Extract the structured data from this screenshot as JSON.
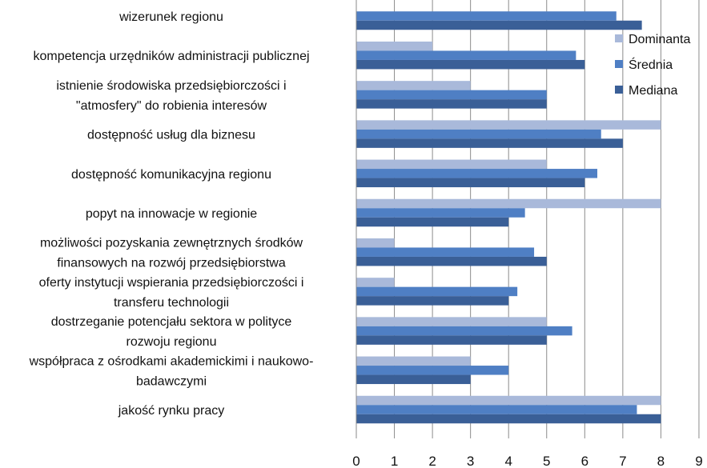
{
  "chart_data": {
    "type": "bar",
    "orientation": "horizontal",
    "categories": [
      [
        "wizerunek regionu"
      ],
      [
        "kompetencja urzędników administracji publicznej"
      ],
      [
        "istnienie środowiska przedsiębiorczości i",
        "\"atmosfery\" do robienia interesów"
      ],
      [
        "dostępność usług dla biznesu"
      ],
      [
        "dostępność komunikacyjna regionu"
      ],
      [
        "popyt na innowacje w regionie"
      ],
      [
        "możliwości pozyskania zewnętrznych środków",
        "finansowych na rozwój przedsiębiorstwa"
      ],
      [
        "oferty instytucji wspierania przedsiębiorczości i",
        "transferu technologii"
      ],
      [
        "dostrzeganie potencjału sektora w polityce",
        "rozwoju regionu"
      ],
      [
        "współpraca z ośrodkami akademickimi i naukowo-",
        "badawczymi"
      ],
      [
        "jakość rynku pracy"
      ]
    ],
    "series": [
      {
        "name": "Dominanta",
        "color": "#a9b9da",
        "values": [
          null,
          2,
          3,
          8,
          5,
          8,
          1,
          1,
          5,
          3,
          8
        ]
      },
      {
        "name": "Średnia",
        "color": "#4f7fc4",
        "values": [
          6.83,
          5.77,
          5,
          6.43,
          6.33,
          4.43,
          4.67,
          4.23,
          5.67,
          4,
          7.37
        ]
      },
      {
        "name": "Mediana",
        "color": "#3a5f97",
        "values": [
          7.5,
          6,
          5,
          7,
          6,
          4,
          5,
          4,
          5,
          3,
          8
        ]
      }
    ],
    "xlim": [
      0,
      9
    ],
    "xticks": [
      "0",
      "1",
      "2",
      "3",
      "4",
      "5",
      "6",
      "7",
      "8",
      "9"
    ],
    "grid": true,
    "legend_position": "right"
  }
}
